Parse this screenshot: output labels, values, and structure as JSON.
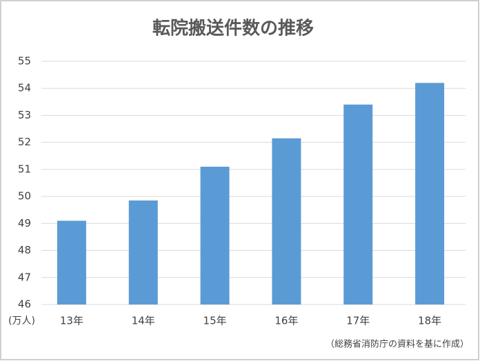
{
  "chart_data": {
    "type": "bar",
    "title": "転院搬送件数の推移",
    "categories": [
      "13年",
      "14年",
      "15年",
      "16年",
      "17年",
      "18年"
    ],
    "values": [
      49.1,
      49.85,
      51.1,
      52.15,
      53.4,
      54.2
    ],
    "color": "#5b9bd5",
    "ylim": [
      46,
      55
    ],
    "yticks": [
      46,
      47,
      48,
      49,
      50,
      51,
      52,
      53,
      54,
      55
    ],
    "grid": true,
    "y_unit_label": "(万人)",
    "source": "（総務省消防庁の資料を基に作成）"
  }
}
